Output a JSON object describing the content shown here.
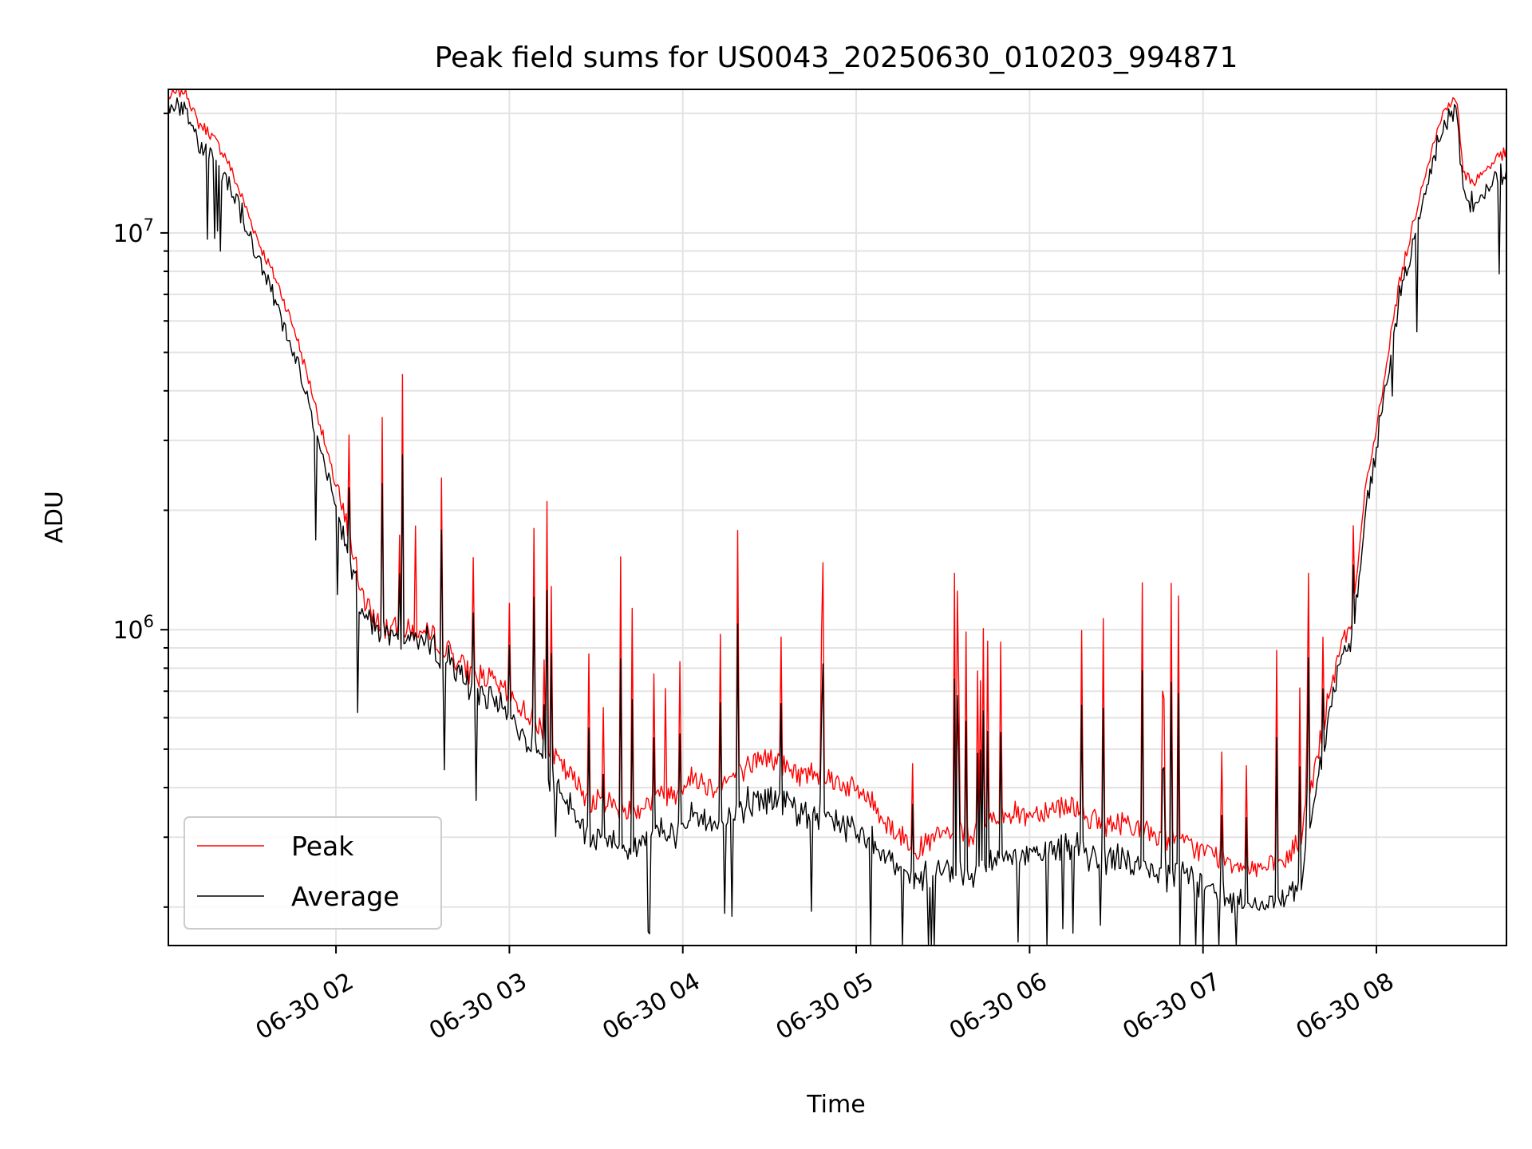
{
  "chart_data": {
    "type": "line",
    "title": "Peak field sums for US0043_20250630_010203_994871",
    "xlabel": "Time",
    "ylabel": "ADU",
    "yscale": "log",
    "ylim": [
      160000,
      23000000
    ],
    "xlim": [
      "2025-06-30 01:02",
      "2025-06-30 08:45"
    ],
    "grid": true,
    "legend": "lower-left",
    "x_ticks": [
      "06-30 02",
      "06-30 03",
      "06-30 04",
      "06-30 05",
      "06-30 06",
      "06-30 07",
      "06-30 08"
    ],
    "y_ticks": [
      {
        "base": "10",
        "exp": "6",
        "value": 1000000
      },
      {
        "base": "10",
        "exp": "7",
        "value": 10000000
      }
    ],
    "series": [
      {
        "name": "Peak",
        "color": "#ff0000",
        "x": [
          "01:02",
          "01:08",
          "01:12",
          "01:16",
          "01:22",
          "01:28",
          "01:34",
          "01:40",
          "01:46",
          "01:52",
          "01:58",
          "02:04",
          "02:10",
          "02:16",
          "02:22",
          "02:28",
          "02:34",
          "02:40",
          "02:46",
          "02:52",
          "02:58",
          "03:04",
          "03:10",
          "03:16",
          "03:22",
          "03:28",
          "03:34",
          "03:40",
          "03:46",
          "03:52",
          "03:58",
          "04:04",
          "04:10",
          "04:16",
          "04:22",
          "04:28",
          "04:34",
          "04:40",
          "04:46",
          "04:52",
          "04:58",
          "05:04",
          "05:10",
          "05:16",
          "05:22",
          "05:28",
          "05:34",
          "05:40",
          "05:46",
          "05:52",
          "05:58",
          "06:04",
          "06:10",
          "06:16",
          "06:22",
          "06:28",
          "06:34",
          "06:40",
          "06:46",
          "06:52",
          "06:58",
          "07:04",
          "07:10",
          "07:16",
          "07:22",
          "07:28",
          "07:34",
          "07:40",
          "07:44",
          "07:48",
          "07:52",
          "07:56",
          "08:00",
          "08:04",
          "08:08",
          "08:12",
          "08:16",
          "08:20",
          "08:24",
          "08:28",
          "08:30",
          "08:34",
          "08:38",
          "08:42",
          "08:45"
        ],
        "y": [
          22000000,
          23000000,
          19000000,
          18000000,
          15500000,
          12000000,
          9200000,
          7400000,
          5600000,
          3900000,
          2600000,
          1800000,
          1150000,
          1020000,
          1000000,
          990000,
          960000,
          870000,
          780000,
          760000,
          700000,
          640000,
          580000,
          470000,
          420000,
          370000,
          370000,
          350000,
          360000,
          380000,
          390000,
          430000,
          400000,
          420000,
          450000,
          480000,
          460000,
          430000,
          440000,
          420000,
          400000,
          380000,
          330000,
          300000,
          280000,
          300000,
          310000,
          300000,
          330000,
          350000,
          340000,
          350000,
          360000,
          360000,
          330000,
          320000,
          330000,
          310000,
          300000,
          290000,
          280000,
          270000,
          260000,
          255000,
          250000,
          258000,
          300000,
          500000,
          700000,
          900000,
          1100000,
          2200000,
          3200000,
          5000000,
          7500000,
          10000000,
          13500000,
          17000000,
          21000000,
          21500000,
          14000000,
          13500000,
          14500000,
          15500000,
          16000000
        ]
      },
      {
        "name": "Average",
        "color": "#000000",
        "x": [
          "01:02",
          "01:08",
          "01:12",
          "01:16",
          "01:22",
          "01:28",
          "01:34",
          "01:40",
          "01:46",
          "01:52",
          "01:58",
          "02:04",
          "02:10",
          "02:16",
          "02:22",
          "02:28",
          "02:34",
          "02:40",
          "02:46",
          "02:52",
          "02:58",
          "03:04",
          "03:10",
          "03:16",
          "03:22",
          "03:28",
          "03:34",
          "03:40",
          "03:46",
          "03:52",
          "03:58",
          "04:04",
          "04:10",
          "04:16",
          "04:22",
          "04:28",
          "04:34",
          "04:40",
          "04:46",
          "04:52",
          "04:58",
          "05:04",
          "05:10",
          "05:16",
          "05:22",
          "05:28",
          "05:34",
          "05:40",
          "05:46",
          "05:52",
          "05:58",
          "06:04",
          "06:10",
          "06:16",
          "06:22",
          "06:28",
          "06:34",
          "06:40",
          "06:46",
          "06:52",
          "06:58",
          "07:04",
          "07:10",
          "07:16",
          "07:22",
          "07:28",
          "07:34",
          "07:40",
          "07:44",
          "07:48",
          "07:52",
          "07:56",
          "08:00",
          "08:04",
          "08:08",
          "08:12",
          "08:16",
          "08:20",
          "08:24",
          "08:28",
          "08:30",
          "08:34",
          "08:38",
          "08:42",
          "08:45"
        ],
        "y": [
          20500000,
          21000000,
          17000000,
          16500000,
          14000000,
          11000000,
          8300000,
          6600000,
          5000000,
          3400000,
          2300000,
          1600000,
          1080000,
          990000,
          970000,
          960000,
          920000,
          820000,
          720000,
          690000,
          630000,
          560000,
          500000,
          400000,
          350000,
          310000,
          300000,
          285000,
          300000,
          310000,
          315000,
          350000,
          330000,
          340000,
          370000,
          380000,
          370000,
          350000,
          355000,
          340000,
          320000,
          300000,
          270000,
          250000,
          240000,
          245000,
          250000,
          245000,
          265000,
          280000,
          275000,
          280000,
          285000,
          290000,
          270000,
          265000,
          268000,
          255000,
          245000,
          240000,
          232000,
          225000,
          215000,
          208000,
          205000,
          210000,
          240000,
          440000,
          620000,
          850000,
          1000000,
          1900000,
          2900000,
          4600000,
          6900000,
          9200000,
          12500000,
          15800000,
          19500000,
          20000000,
          12500000,
          12200000,
          13200000,
          14000000,
          14500000
        ]
      }
    ]
  }
}
